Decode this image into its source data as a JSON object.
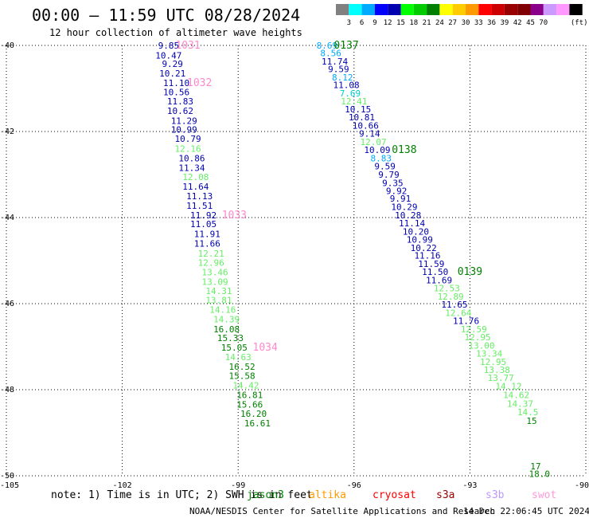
{
  "title": "00:00 – 11:59 UTC 08/28/2024",
  "subtitle": "12 hour collection of altimeter wave heights",
  "legend": {
    "swatches": [
      "#808080",
      "#00ffff",
      "#00aaff",
      "#0000ff",
      "#0000b0",
      "#00ff00",
      "#00cc00",
      "#008000",
      "#ffff00",
      "#ffcc00",
      "#ff9900",
      "#ff0000",
      "#cc0000",
      "#990000",
      "#800000",
      "#8b008b",
      "#cc99ff",
      "#ff99ff",
      "#000000"
    ],
    "labels": [
      "3",
      "6",
      "9",
      "12",
      "15",
      "18",
      "21",
      "24",
      "27",
      "30",
      "33",
      "36",
      "39",
      "42",
      "45",
      "70"
    ],
    "unit": "(ft)"
  },
  "chart_data": {
    "type": "scatter",
    "title": "00:00 – 11:59 UTC 08/28/2024",
    "subtitle": "12 hour collection of altimeter wave heights",
    "unit": "ft",
    "xlim": [
      -105,
      -90
    ],
    "ylim": [
      -50,
      -40
    ],
    "x_ticks": [
      -105,
      -102,
      -99,
      -96,
      -93,
      -90
    ],
    "y_ticks": [
      -40,
      -42,
      -44,
      -46,
      -48,
      -50
    ],
    "grid": true,
    "points": [
      {
        "lon": -100.8,
        "lat": -40.0,
        "v": "9.85",
        "c": "#0000b0"
      },
      {
        "lon": -100.8,
        "lat": -40.23,
        "v": "10.47",
        "c": "#0000b0"
      },
      {
        "lon": -100.7,
        "lat": -40.43,
        "v": "9.29",
        "c": "#0000b0"
      },
      {
        "lon": -100.7,
        "lat": -40.65,
        "v": "10.21",
        "c": "#0000b0"
      },
      {
        "lon": -100.6,
        "lat": -40.87,
        "v": "11.10",
        "c": "#0000b0"
      },
      {
        "lon": -100.6,
        "lat": -41.08,
        "v": "10.56",
        "c": "#0000b0"
      },
      {
        "lon": -100.5,
        "lat": -41.3,
        "v": "11.83",
        "c": "#0000b0"
      },
      {
        "lon": -100.5,
        "lat": -41.52,
        "v": "10.62",
        "c": "#0000b0"
      },
      {
        "lon": -100.4,
        "lat": -41.75,
        "v": "11.29",
        "c": "#0000b0"
      },
      {
        "lon": -100.4,
        "lat": -41.95,
        "v": "10.99",
        "c": "#0000b0"
      },
      {
        "lon": -100.3,
        "lat": -42.17,
        "v": "10.79",
        "c": "#0000b0"
      },
      {
        "lon": -100.3,
        "lat": -42.4,
        "v": "12.16",
        "c": "#66ee66"
      },
      {
        "lon": -100.2,
        "lat": -42.62,
        "v": "10.86",
        "c": "#0000b0"
      },
      {
        "lon": -100.2,
        "lat": -42.84,
        "v": "11.34",
        "c": "#0000b0"
      },
      {
        "lon": -100.1,
        "lat": -43.06,
        "v": "12.08",
        "c": "#66ee66"
      },
      {
        "lon": -100.1,
        "lat": -43.28,
        "v": "11.64",
        "c": "#0000b0"
      },
      {
        "lon": -100.0,
        "lat": -43.5,
        "v": "11.13",
        "c": "#0000b0"
      },
      {
        "lon": -100.0,
        "lat": -43.72,
        "v": "11.51",
        "c": "#0000b0"
      },
      {
        "lon": -99.9,
        "lat": -43.94,
        "v": "11.92",
        "c": "#0000b0"
      },
      {
        "lon": -99.9,
        "lat": -44.15,
        "v": "11.05",
        "c": "#0000b0"
      },
      {
        "lon": -99.8,
        "lat": -44.38,
        "v": "11.91",
        "c": "#0000b0"
      },
      {
        "lon": -99.8,
        "lat": -44.6,
        "v": "11.66",
        "c": "#0000b0"
      },
      {
        "lon": -99.7,
        "lat": -44.83,
        "v": "12.21",
        "c": "#66ee66"
      },
      {
        "lon": -99.7,
        "lat": -45.05,
        "v": "12.96",
        "c": "#66ee66"
      },
      {
        "lon": -99.6,
        "lat": -45.27,
        "v": "13.46",
        "c": "#66ee66"
      },
      {
        "lon": -99.6,
        "lat": -45.49,
        "v": "13.09",
        "c": "#66ee66"
      },
      {
        "lon": -99.5,
        "lat": -45.7,
        "v": "14.31",
        "c": "#66ee66"
      },
      {
        "lon": -99.5,
        "lat": -45.92,
        "v": "13.81",
        "c": "#66ee66"
      },
      {
        "lon": -99.4,
        "lat": -46.14,
        "v": "14.16",
        "c": "#66ee66"
      },
      {
        "lon": -99.3,
        "lat": -46.36,
        "v": "14.39",
        "c": "#66ee66"
      },
      {
        "lon": -99.3,
        "lat": -46.59,
        "v": "16.08",
        "c": "#008000"
      },
      {
        "lon": -99.2,
        "lat": -46.8,
        "v": "15.33",
        "c": "#008000"
      },
      {
        "lon": -99.1,
        "lat": -47.02,
        "v": "15.05",
        "c": "#008000"
      },
      {
        "lon": -99.0,
        "lat": -47.24,
        "v": "14.63",
        "c": "#66ee66"
      },
      {
        "lon": -98.9,
        "lat": -47.46,
        "v": "16.52",
        "c": "#008000"
      },
      {
        "lon": -98.9,
        "lat": -47.68,
        "v": "15.58",
        "c": "#008000"
      },
      {
        "lon": -98.8,
        "lat": -47.9,
        "v": "14.42",
        "c": "#66ee66"
      },
      {
        "lon": -98.7,
        "lat": -48.12,
        "v": "16.81",
        "c": "#008000"
      },
      {
        "lon": -98.7,
        "lat": -48.34,
        "v": "15.66",
        "c": "#008000"
      },
      {
        "lon": -98.6,
        "lat": -48.56,
        "v": "16.20",
        "c": "#008000"
      },
      {
        "lon": -98.5,
        "lat": -48.78,
        "v": "16.61",
        "c": "#008000"
      },
      {
        "lon": -96.7,
        "lat": -40.0,
        "v": "8.69",
        "c": "#00aaff"
      },
      {
        "lon": -96.6,
        "lat": -40.18,
        "v": "8.56",
        "c": "#00aaff"
      },
      {
        "lon": -96.5,
        "lat": -40.37,
        "v": "11.74",
        "c": "#0000b0"
      },
      {
        "lon": -96.4,
        "lat": -40.55,
        "v": "9.59",
        "c": "#0000b0"
      },
      {
        "lon": -96.3,
        "lat": -40.74,
        "v": "8.12",
        "c": "#00aaff"
      },
      {
        "lon": -96.2,
        "lat": -40.92,
        "v": "11.08",
        "c": "#0000b0"
      },
      {
        "lon": -96.1,
        "lat": -41.11,
        "v": "7.69",
        "c": "#00cccc"
      },
      {
        "lon": -96.0,
        "lat": -41.3,
        "v": "12.41",
        "c": "#66ee66"
      },
      {
        "lon": -95.9,
        "lat": -41.48,
        "v": "10.15",
        "c": "#0000b0"
      },
      {
        "lon": -95.8,
        "lat": -41.67,
        "v": "10.81",
        "c": "#0000b0"
      },
      {
        "lon": -95.7,
        "lat": -41.86,
        "v": "10.66",
        "c": "#0000b0"
      },
      {
        "lon": -95.6,
        "lat": -42.05,
        "v": "9.14",
        "c": "#0000b0"
      },
      {
        "lon": -95.5,
        "lat": -42.24,
        "v": "12.07",
        "c": "#66ee66"
      },
      {
        "lon": -95.4,
        "lat": -42.43,
        "v": "10.09",
        "c": "#0000b0"
      },
      {
        "lon": -95.3,
        "lat": -42.62,
        "v": "8.83",
        "c": "#00aaff"
      },
      {
        "lon": -95.2,
        "lat": -42.81,
        "v": "9.59",
        "c": "#0000b0"
      },
      {
        "lon": -95.1,
        "lat": -43.0,
        "v": "9.79",
        "c": "#0000b0"
      },
      {
        "lon": -95.0,
        "lat": -43.19,
        "v": "9.35",
        "c": "#0000b0"
      },
      {
        "lon": -94.9,
        "lat": -43.38,
        "v": "9.92",
        "c": "#0000b0"
      },
      {
        "lon": -94.8,
        "lat": -43.56,
        "v": "9.91",
        "c": "#0000b0"
      },
      {
        "lon": -94.7,
        "lat": -43.75,
        "v": "10.29",
        "c": "#0000b0"
      },
      {
        "lon": -94.6,
        "lat": -43.94,
        "v": "10.28",
        "c": "#0000b0"
      },
      {
        "lon": -94.5,
        "lat": -44.13,
        "v": "11.14",
        "c": "#0000b0"
      },
      {
        "lon": -94.4,
        "lat": -44.32,
        "v": "10.20",
        "c": "#0000b0"
      },
      {
        "lon": -94.3,
        "lat": -44.51,
        "v": "10.99",
        "c": "#0000b0"
      },
      {
        "lon": -94.2,
        "lat": -44.7,
        "v": "10.22",
        "c": "#0000b0"
      },
      {
        "lon": -94.1,
        "lat": -44.88,
        "v": "11.16",
        "c": "#0000b0"
      },
      {
        "lon": -94.0,
        "lat": -45.07,
        "v": "11.59",
        "c": "#0000b0"
      },
      {
        "lon": -93.9,
        "lat": -45.26,
        "v": "11.50",
        "c": "#0000b0"
      },
      {
        "lon": -93.8,
        "lat": -45.45,
        "v": "11.69",
        "c": "#0000b0"
      },
      {
        "lon": -93.6,
        "lat": -45.64,
        "v": "12.53",
        "c": "#66ee66"
      },
      {
        "lon": -93.5,
        "lat": -45.83,
        "v": "12.89",
        "c": "#66ee66"
      },
      {
        "lon": -93.4,
        "lat": -46.02,
        "v": "11.65",
        "c": "#0000b0"
      },
      {
        "lon": -93.3,
        "lat": -46.21,
        "v": "12.64",
        "c": "#66ee66"
      },
      {
        "lon": -93.1,
        "lat": -46.4,
        "v": "11.76",
        "c": "#0000b0"
      },
      {
        "lon": -92.9,
        "lat": -46.59,
        "v": "12.59",
        "c": "#66ee66"
      },
      {
        "lon": -92.8,
        "lat": -46.78,
        "v": "12.95",
        "c": "#66ee66"
      },
      {
        "lon": -92.7,
        "lat": -46.97,
        "v": "13.00",
        "c": "#66ee66"
      },
      {
        "lon": -92.5,
        "lat": -47.16,
        "v": "13.34",
        "c": "#66ee66"
      },
      {
        "lon": -92.4,
        "lat": -47.35,
        "v": "12.95",
        "c": "#66ee66"
      },
      {
        "lon": -92.3,
        "lat": -47.54,
        "v": "13.38",
        "c": "#66ee66"
      },
      {
        "lon": -92.2,
        "lat": -47.72,
        "v": "13.77",
        "c": "#66ee66"
      },
      {
        "lon": -92.0,
        "lat": -47.92,
        "v": "14.12",
        "c": "#66ee66"
      },
      {
        "lon": -91.8,
        "lat": -48.12,
        "v": "14.62",
        "c": "#66ee66"
      },
      {
        "lon": -91.7,
        "lat": -48.32,
        "v": "14.37",
        "c": "#66ee66"
      },
      {
        "lon": -91.5,
        "lat": -48.52,
        "v": "14.5",
        "c": "#66ee66"
      },
      {
        "lon": -91.4,
        "lat": -48.72,
        "v": "15",
        "c": "#008000"
      },
      {
        "lon": -91.3,
        "lat": -49.78,
        "v": "17",
        "c": "#008000"
      },
      {
        "lon": -91.2,
        "lat": -49.95,
        "v": "18.0",
        "c": "#008000"
      }
    ],
    "pass_labels": [
      {
        "lon": -100.3,
        "lat": -40.0,
        "text": "1031",
        "c": "#ff88cc"
      },
      {
        "lon": -100.0,
        "lat": -40.87,
        "text": "1032",
        "c": "#ff88cc"
      },
      {
        "lon": -99.1,
        "lat": -43.94,
        "text": "1033",
        "c": "#ff88cc"
      },
      {
        "lon": -98.3,
        "lat": -47.02,
        "text": "1034",
        "c": "#ff88cc"
      },
      {
        "lon": -96.2,
        "lat": -40.0,
        "text": "0137",
        "c": "#008000"
      },
      {
        "lon": -94.7,
        "lat": -42.43,
        "text": "0138",
        "c": "#008000"
      },
      {
        "lon": -93.0,
        "lat": -45.26,
        "text": "0139",
        "c": "#008000"
      }
    ]
  },
  "note": {
    "text": "note: 1) Time is in UTC; 2) SWH is in feet",
    "satellites": [
      {
        "name": "jason3",
        "color": "#008000"
      },
      {
        "name": "altika",
        "color": "#ff9900"
      },
      {
        "name": "cryosat",
        "color": "#ff0000"
      },
      {
        "name": "s3a",
        "color": "#990000"
      },
      {
        "name": "s3b",
        "color": "#bb99ff"
      },
      {
        "name": "swot",
        "color": "#ff99dd"
      }
    ]
  },
  "footer": {
    "org": "NOAA/NESDIS Center for Satellite Applications and Research",
    "timestamp": "14 Dec 22:06:45 UTC 2024"
  }
}
